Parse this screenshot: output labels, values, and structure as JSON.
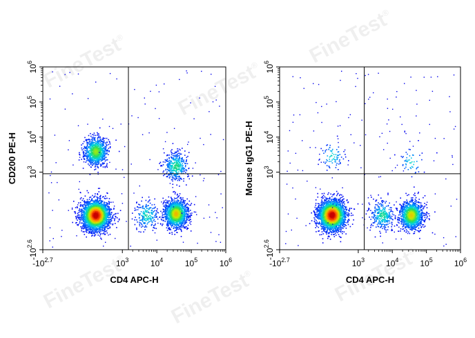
{
  "watermark": {
    "text": "FineTest",
    "mark": "®"
  },
  "chart_data": [
    {
      "type": "scatter",
      "subtype": "flow-cytometry-pseudocolor-density",
      "xlabel": "CD4 APC-H",
      "ylabel": "CD200 PE-H",
      "x_scale": "biexponential",
      "y_scale": "biexponential",
      "xlim": [
        -501,
        1000000
      ],
      "ylim": [
        -398,
        1000000
      ],
      "x_ticks": [
        {
          "value": -501,
          "base": "-10",
          "exp": "2.7"
        },
        {
          "value": 1000,
          "base": "10",
          "exp": "3"
        },
        {
          "value": 10000,
          "base": "10",
          "exp": "4"
        },
        {
          "value": 100000,
          "base": "10",
          "exp": "5"
        },
        {
          "value": 1000000,
          "base": "10",
          "exp": "6"
        }
      ],
      "y_ticks": [
        {
          "value": -398,
          "base": "-10",
          "exp": "2.6"
        },
        {
          "value": 1000,
          "base": "10",
          "exp": "3"
        },
        {
          "value": 10000,
          "base": "10",
          "exp": "4"
        },
        {
          "value": 100000,
          "base": "10",
          "exp": "5"
        },
        {
          "value": 1000000,
          "base": "10",
          "exp": "6"
        }
      ],
      "gate": {
        "x": 1500,
        "y": 900
      },
      "populations": [
        {
          "x": 150,
          "y": 20,
          "rel_density": 1.0
        },
        {
          "x": 150,
          "y": 4000,
          "rel_density": 0.35
        },
        {
          "x": 35000,
          "y": 30,
          "rel_density": 0.55
        },
        {
          "x": 35000,
          "y": 1500,
          "rel_density": 0.15
        },
        {
          "x": 5000,
          "y": 20,
          "rel_density": 0.08
        }
      ],
      "grid": false,
      "legend": "none"
    },
    {
      "type": "scatter",
      "subtype": "flow-cytometry-pseudocolor-density",
      "xlabel": "CD4 APC-H",
      "ylabel": "Mouse IgG1 PE-H",
      "x_scale": "biexponential",
      "y_scale": "biexponential",
      "xlim": [
        -501,
        1000000
      ],
      "ylim": [
        -398,
        1000000
      ],
      "x_ticks": [
        {
          "value": -501,
          "base": "-10",
          "exp": "2.7"
        },
        {
          "value": 1000,
          "base": "10",
          "exp": "3"
        },
        {
          "value": 10000,
          "base": "10",
          "exp": "4"
        },
        {
          "value": 100000,
          "base": "10",
          "exp": "5"
        },
        {
          "value": 1000000,
          "base": "10",
          "exp": "6"
        }
      ],
      "y_ticks": [
        {
          "value": -398,
          "base": "-10",
          "exp": "2.6"
        },
        {
          "value": 1000,
          "base": "10",
          "exp": "3"
        },
        {
          "value": 10000,
          "base": "10",
          "exp": "4"
        },
        {
          "value": 100000,
          "base": "10",
          "exp": "5"
        },
        {
          "value": 1000000,
          "base": "10",
          "exp": "6"
        }
      ],
      "gate": {
        "x": 1500,
        "y": 900
      },
      "populations": [
        {
          "x": 150,
          "y": 20,
          "rel_density": 1.0
        },
        {
          "x": 35000,
          "y": 20,
          "rel_density": 0.5
        },
        {
          "x": 5000,
          "y": 20,
          "rel_density": 0.12
        },
        {
          "x": 150,
          "y": 3000,
          "rel_density": 0.03
        },
        {
          "x": 35000,
          "y": 2000,
          "rel_density": 0.02
        }
      ],
      "grid": false,
      "legend": "none"
    }
  ]
}
